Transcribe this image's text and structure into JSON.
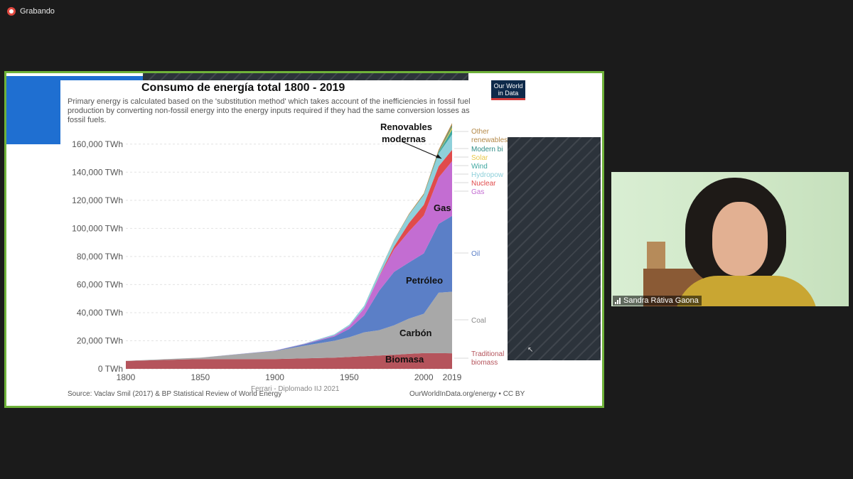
{
  "app": {
    "recording_label": "Grabando"
  },
  "participant": {
    "name": "Sandra Rátiva Gaona"
  },
  "slide": {
    "title": "Consumo de energía total 1800 - 2019",
    "subtitle": "Primary energy is calculated based on the 'substitution method' which takes account of the inefficiencies in fossil fuel production by converting non-fossil energy into the energy inputs required if they had the same conversion losses as fossil fuels.",
    "logo_line1": "Our World",
    "logo_line2": "in Data",
    "source": "Source: Vaclav Smil (2017) & BP Statistical Review of World Energy",
    "credit": "OurWorldInData.org/energy • CC BY",
    "watermark": "Ferrari - Diplomado IIJ 2021",
    "annotations": {
      "renovables1": "Renovables",
      "renovables2": "modernas",
      "gas": "Gas",
      "petroleo": "Petróleo",
      "carbon": "Carbón",
      "biomasa": "Biomasa"
    }
  },
  "chart_data": {
    "type": "area",
    "title": "Consumo de energía total 1800 - 2019",
    "x": [
      1800,
      1850,
      1900,
      1920,
      1940,
      1950,
      1960,
      1970,
      1980,
      1990,
      2000,
      2010,
      2019
    ],
    "ylim": [
      0,
      170000
    ],
    "xlim": [
      1800,
      2019
    ],
    "y_ticks": [
      "0 TWh",
      "20,000 TWh",
      "40,000 TWh",
      "60,000 TWh",
      "80,000 TWh",
      "100,000 TWh",
      "120,000 TWh",
      "140,000 TWh",
      "160,000 TWh"
    ],
    "y_tick_values": [
      0,
      20000,
      40000,
      60000,
      80000,
      100000,
      120000,
      140000,
      160000
    ],
    "x_ticks": [
      "1800",
      "1850",
      "1900",
      "1950",
      "2000",
      "2019"
    ],
    "x_tick_values": [
      1800,
      1850,
      1900,
      1950,
      2000,
      2019
    ],
    "series": [
      {
        "name": "Traditional biomass",
        "color": "#b5545c",
        "values": [
          5600,
          7000,
          7000,
          7500,
          8000,
          8500,
          9000,
          9500,
          10000,
          10700,
          11200,
          11200,
          11100
        ]
      },
      {
        "name": "Coal",
        "color": "#a8a8a8",
        "values": [
          100,
          1000,
          5700,
          9000,
          12000,
          14000,
          17000,
          18000,
          21000,
          25000,
          28000,
          43000,
          43800
        ]
      },
      {
        "name": "Oil",
        "color": "#5b7fc7",
        "values": [
          0,
          0,
          200,
          1000,
          3000,
          6000,
          12000,
          28000,
          38000,
          40000,
          43000,
          49000,
          54000
        ]
      },
      {
        "name": "Gas",
        "color": "#c36dd2",
        "values": [
          0,
          0,
          100,
          300,
          800,
          2000,
          5000,
          10000,
          16000,
          22000,
          27000,
          33000,
          39000
        ]
      },
      {
        "name": "Nuclear",
        "color": "#e04b4b",
        "values": [
          0,
          0,
          0,
          0,
          0,
          0,
          0,
          300,
          2000,
          6000,
          7500,
          8000,
          8000
        ]
      },
      {
        "name": "Hydropower",
        "color": "#8ed0da",
        "values": [
          0,
          0,
          0,
          300,
          800,
          1000,
          2000,
          3000,
          4500,
          6000,
          7000,
          9000,
          11000
        ]
      },
      {
        "name": "Wind",
        "color": "#3ea7a0",
        "values": [
          0,
          0,
          0,
          0,
          0,
          0,
          0,
          0,
          0,
          0,
          100,
          900,
          3500
        ]
      },
      {
        "name": "Solar",
        "color": "#e8c84a",
        "values": [
          0,
          0,
          0,
          0,
          0,
          0,
          0,
          0,
          0,
          0,
          0,
          100,
          1800
        ]
      },
      {
        "name": "Modern biofuels",
        "color": "#2f8c86",
        "values": [
          0,
          0,
          0,
          0,
          0,
          0,
          0,
          0,
          0,
          0,
          200,
          600,
          1100
        ]
      },
      {
        "name": "Other renewables",
        "color": "#b58a4a",
        "values": [
          0,
          0,
          0,
          0,
          0,
          0,
          0,
          100,
          300,
          600,
          800,
          1300,
          1700
        ]
      }
    ],
    "legend": [
      {
        "label": "Other",
        "color": "#b58a4a"
      },
      {
        "label": "renewables",
        "color": "#b58a4a"
      },
      {
        "label": "Modern bi",
        "color": "#2f8c86"
      },
      {
        "label": "Solar",
        "color": "#e8c84a"
      },
      {
        "label": "Wind",
        "color": "#3ea7a0"
      },
      {
        "label": "Hydropow",
        "color": "#8ed0da"
      },
      {
        "label": "Nuclear",
        "color": "#e04b4b"
      },
      {
        "label": "Gas",
        "color": "#c36dd2"
      },
      {
        "label": "Oil",
        "color": "#5b7fc7"
      },
      {
        "label": "Coal",
        "color": "#8a8a8a"
      },
      {
        "label": "Traditional",
        "color": "#b5545c"
      },
      {
        "label": "biomass",
        "color": "#b5545c"
      }
    ]
  }
}
